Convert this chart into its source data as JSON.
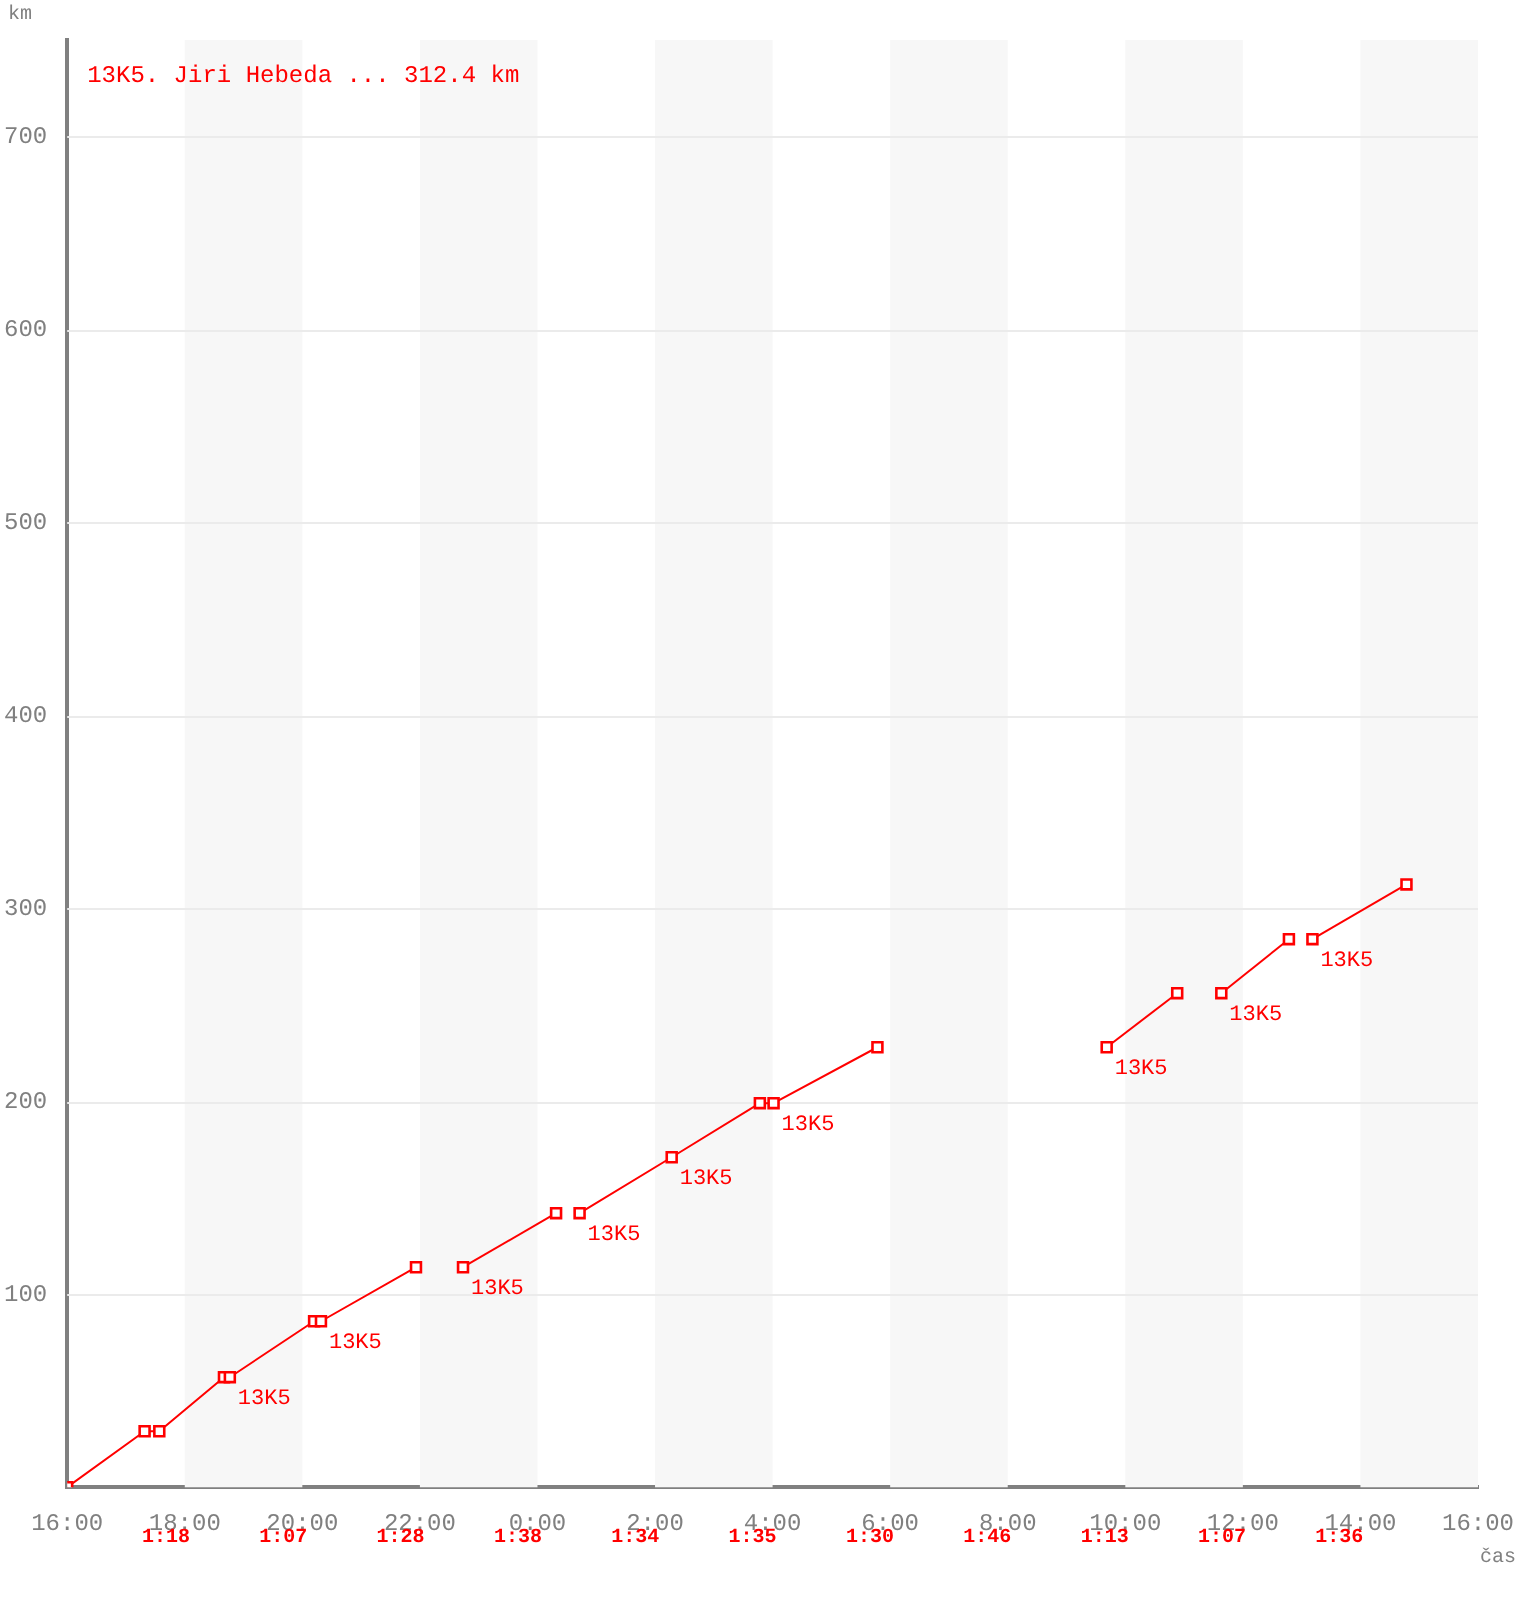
{
  "chart_data": {
    "type": "line",
    "title": "13K5. Jiri Hebeda ... 312.4 km",
    "xlabel": "čas",
    "ylabel": "km",
    "xlim": [
      "--01-01T16:00",
      "--01-02T16:00"
    ],
    "xticks": [
      {
        "value": "--01-01T16:00",
        "label": "16:00"
      },
      {
        "value": "--01-01T18:00",
        "label": "18:00"
      },
      {
        "value": "--01-01T20:00",
        "label": "20:00"
      },
      {
        "value": "--01-01T22:00",
        "label": "22:00"
      },
      {
        "value": "--01-02T00:00",
        "label": "0:00"
      },
      {
        "value": "--01-02T02:00",
        "label": "2:00"
      },
      {
        "value": "--01-02T04:00",
        "label": "4:00"
      },
      {
        "value": "--01-02T06:00",
        "label": "6:00"
      },
      {
        "value": "--01-02T08:00",
        "label": "8:00"
      },
      {
        "value": "--01-02T10:00",
        "label": "10:00"
      },
      {
        "value": "--01-02T12:00",
        "label": "12:00"
      },
      {
        "value": "--01-02T14:00",
        "label": "14:00"
      },
      {
        "value": "--01-02T16:00",
        "label": "16:00"
      }
    ],
    "ylim": [
      0,
      750
    ],
    "yticks": [
      100,
      200,
      300,
      400,
      500,
      600,
      700
    ],
    "grid": "y",
    "legend": false,
    "marker": "square",
    "line_style": "solid",
    "series": [
      {
        "color": "#ff0000",
        "x": [
          "--01-01T16:00",
          "--01-01T17:19",
          "--01-01T17:34",
          "--01-01T18:40",
          "--01-01T18:46",
          "--01-01T20:12",
          "--01-01T20:19",
          "--01-01T21:56"
        ],
        "values": [
          0,
          29,
          29,
          57,
          57,
          86,
          86,
          114
        ]
      },
      {
        "color": "#ff0000",
        "x": [
          "--01-01T22:44",
          "--01-02T00:19"
        ],
        "values": [
          114,
          142
        ]
      },
      {
        "color": "#ff0000",
        "x": [
          "--01-02T00:43",
          "--01-02T02:17",
          "--01-02T03:47",
          "--01-02T04:01",
          "--01-02T05:47"
        ],
        "values": [
          142,
          171,
          199,
          199,
          228
        ]
      },
      {
        "color": "#ff0000",
        "x": [
          "--01-02T09:41",
          "--01-02T10:53"
        ],
        "values": [
          228,
          256
        ]
      },
      {
        "color": "#ff0000",
        "x": [
          "--01-02T11:38",
          "--01-02T12:47"
        ],
        "values": [
          256,
          284
        ]
      },
      {
        "color": "#ff0000",
        "x": [
          "--01-02T13:11",
          "--01-02T14:47"
        ],
        "values": [
          284,
          312.4
        ]
      }
    ],
    "bands": [
      {
        "axis": "x",
        "from": "--01-01T18:00",
        "to": "--01-01T20:00",
        "color": "#f7f7f7"
      },
      {
        "axis": "x",
        "from": "--01-01T22:00",
        "to": "--01-02T00:00",
        "color": "#f7f7f7"
      },
      {
        "axis": "x",
        "from": "--01-02T02:00",
        "to": "--01-02T04:00",
        "color": "#f7f7f7"
      },
      {
        "axis": "x",
        "from": "--01-02T06:00",
        "to": "--01-02T08:00",
        "color": "#f7f7f7"
      },
      {
        "axis": "x",
        "from": "--01-02T10:00",
        "to": "--01-02T12:00",
        "color": "#f7f7f7"
      },
      {
        "axis": "x",
        "from": "--01-02T14:00",
        "to": "--01-02T16:00",
        "color": "#f7f7f7"
      }
    ],
    "annotations": [
      {
        "text": "13K5",
        "x": "--01-01T18:46",
        "y": 57
      },
      {
        "text": "13K5",
        "x": "--01-01T20:19",
        "y": 86
      },
      {
        "text": "13K5",
        "x": "--01-01T22:44",
        "y": 114
      },
      {
        "text": "13K5",
        "x": "--01-02T00:43",
        "y": 142
      },
      {
        "text": "13K5",
        "x": "--01-02T02:17",
        "y": 171
      },
      {
        "text": "13K5",
        "x": "--01-02T04:01",
        "y": 199
      },
      {
        "text": "13K5",
        "x": "--01-02T09:41",
        "y": 228
      },
      {
        "text": "13K5",
        "x": "--01-02T11:38",
        "y": 256
      },
      {
        "text": "13K5",
        "x": "--01-02T13:11",
        "y": 284
      },
      "1:18",
      "1:07",
      "1:28",
      "1:38",
      "1:34",
      "1:35",
      "1:30",
      "1:46",
      "1:13",
      "1:07",
      "1:36"
    ]
  }
}
